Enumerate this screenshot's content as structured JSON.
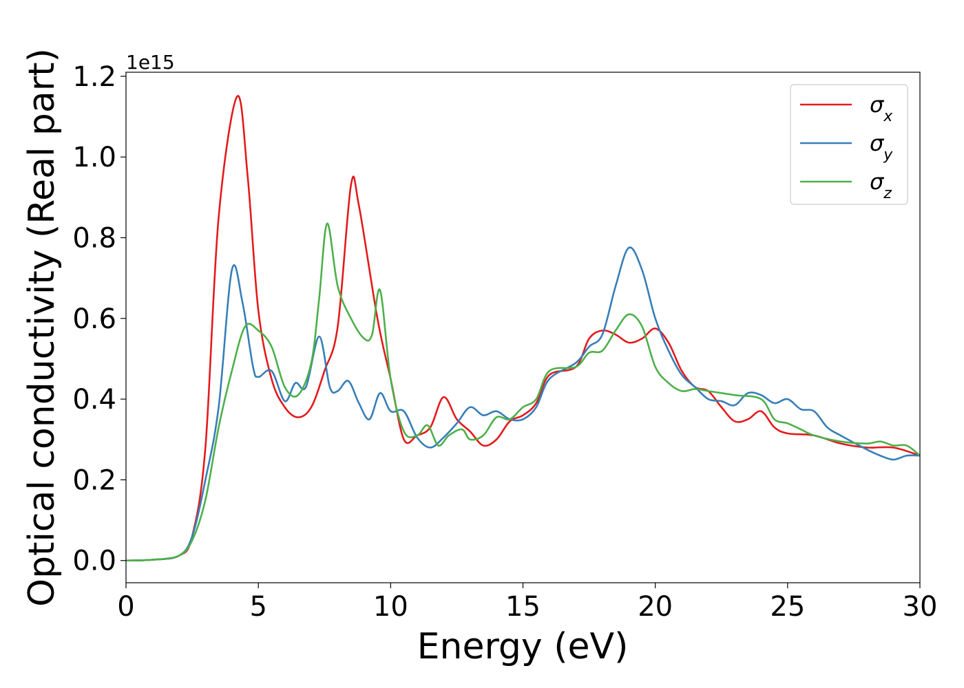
{
  "chart_data": {
    "type": "line",
    "title": "",
    "xlabel": "Energy (eV)",
    "ylabel": "Optical conductivity (Real part)",
    "y_offset_label": "1e15",
    "xlim": [
      0,
      30
    ],
    "ylim": [
      -0.055,
      1.21
    ],
    "x_ticks": [
      0,
      5,
      10,
      15,
      20,
      25,
      30
    ],
    "x_tick_labels": [
      "0",
      "5",
      "10",
      "15",
      "20",
      "25",
      "30"
    ],
    "y_ticks": [
      0.0,
      0.2,
      0.4,
      0.6,
      0.8,
      1.0,
      1.2
    ],
    "y_tick_labels": [
      "0.0",
      "0.2",
      "0.4",
      "0.6",
      "0.8",
      "1.0",
      "1.2"
    ],
    "grid": false,
    "legend_position": "top-right",
    "series": [
      {
        "name": "σx",
        "base": "σ",
        "sub": "x",
        "color": "#e41a1c",
        "points": [
          [
            0,
            0
          ],
          [
            1,
            0.002
          ],
          [
            2,
            0.012
          ],
          [
            2.5,
            0.06
          ],
          [
            3,
            0.28
          ],
          [
            3.5,
            0.85
          ],
          [
            4.2,
            1.15
          ],
          [
            4.6,
            0.95
          ],
          [
            5,
            0.62
          ],
          [
            5.5,
            0.45
          ],
          [
            6,
            0.38
          ],
          [
            6.5,
            0.355
          ],
          [
            7,
            0.38
          ],
          [
            7.5,
            0.47
          ],
          [
            8,
            0.58
          ],
          [
            8.5,
            0.93
          ],
          [
            8.8,
            0.88
          ],
          [
            9.5,
            0.6
          ],
          [
            10,
            0.45
          ],
          [
            10.5,
            0.3
          ],
          [
            11,
            0.31
          ],
          [
            11.5,
            0.33
          ],
          [
            12,
            0.405
          ],
          [
            12.5,
            0.35
          ],
          [
            13,
            0.32
          ],
          [
            13.5,
            0.285
          ],
          [
            14,
            0.3
          ],
          [
            14.5,
            0.345
          ],
          [
            15,
            0.36
          ],
          [
            15.5,
            0.39
          ],
          [
            16,
            0.46
          ],
          [
            17,
            0.48
          ],
          [
            17.5,
            0.55
          ],
          [
            18,
            0.57
          ],
          [
            18.5,
            0.56
          ],
          [
            19,
            0.54
          ],
          [
            19.5,
            0.55
          ],
          [
            20,
            0.575
          ],
          [
            20.5,
            0.54
          ],
          [
            21,
            0.47
          ],
          [
            21.5,
            0.43
          ],
          [
            22,
            0.42
          ],
          [
            22.5,
            0.38
          ],
          [
            23,
            0.345
          ],
          [
            23.5,
            0.35
          ],
          [
            24,
            0.37
          ],
          [
            24.5,
            0.33
          ],
          [
            25,
            0.315
          ],
          [
            26,
            0.31
          ],
          [
            27,
            0.29
          ],
          [
            28,
            0.28
          ],
          [
            29,
            0.28
          ],
          [
            30,
            0.26
          ]
        ]
      },
      {
        "name": "σy",
        "base": "σ",
        "sub": "y",
        "color": "#377eb8",
        "points": [
          [
            0,
            0
          ],
          [
            1,
            0.002
          ],
          [
            2,
            0.012
          ],
          [
            2.5,
            0.06
          ],
          [
            3,
            0.2
          ],
          [
            3.5,
            0.38
          ],
          [
            4,
            0.72
          ],
          [
            4.4,
            0.64
          ],
          [
            4.8,
            0.48
          ],
          [
            5,
            0.455
          ],
          [
            5.5,
            0.47
          ],
          [
            6,
            0.395
          ],
          [
            6.4,
            0.44
          ],
          [
            6.8,
            0.43
          ],
          [
            7.3,
            0.555
          ],
          [
            7.7,
            0.43
          ],
          [
            8,
            0.42
          ],
          [
            8.4,
            0.445
          ],
          [
            8.8,
            0.39
          ],
          [
            9.2,
            0.35
          ],
          [
            9.6,
            0.415
          ],
          [
            10,
            0.37
          ],
          [
            10.5,
            0.37
          ],
          [
            11,
            0.305
          ],
          [
            11.5,
            0.28
          ],
          [
            12,
            0.305
          ],
          [
            12.5,
            0.34
          ],
          [
            13,
            0.38
          ],
          [
            13.5,
            0.36
          ],
          [
            14,
            0.37
          ],
          [
            14.5,
            0.35
          ],
          [
            15,
            0.35
          ],
          [
            15.5,
            0.38
          ],
          [
            16,
            0.45
          ],
          [
            17,
            0.49
          ],
          [
            17.5,
            0.53
          ],
          [
            18,
            0.56
          ],
          [
            18.5,
            0.68
          ],
          [
            19,
            0.775
          ],
          [
            19.5,
            0.72
          ],
          [
            20,
            0.6
          ],
          [
            20.5,
            0.52
          ],
          [
            21,
            0.46
          ],
          [
            21.5,
            0.43
          ],
          [
            22,
            0.4
          ],
          [
            22.5,
            0.395
          ],
          [
            23,
            0.385
          ],
          [
            23.5,
            0.415
          ],
          [
            24,
            0.41
          ],
          [
            24.5,
            0.39
          ],
          [
            25,
            0.4
          ],
          [
            25.5,
            0.375
          ],
          [
            26,
            0.37
          ],
          [
            26.5,
            0.33
          ],
          [
            27,
            0.31
          ],
          [
            28,
            0.275
          ],
          [
            28.5,
            0.26
          ],
          [
            29,
            0.25
          ],
          [
            29.5,
            0.26
          ],
          [
            30,
            0.26
          ]
        ]
      },
      {
        "name": "σz",
        "base": "σ",
        "sub": "z",
        "color": "#4daf4a",
        "points": [
          [
            0,
            0
          ],
          [
            1,
            0.002
          ],
          [
            2,
            0.012
          ],
          [
            2.5,
            0.05
          ],
          [
            3,
            0.15
          ],
          [
            3.5,
            0.33
          ],
          [
            4,
            0.47
          ],
          [
            4.5,
            0.58
          ],
          [
            5,
            0.57
          ],
          [
            5.5,
            0.53
          ],
          [
            6,
            0.43
          ],
          [
            6.5,
            0.41
          ],
          [
            7,
            0.49
          ],
          [
            7.3,
            0.65
          ],
          [
            7.6,
            0.835
          ],
          [
            8,
            0.68
          ],
          [
            8.5,
            0.6
          ],
          [
            9,
            0.55
          ],
          [
            9.3,
            0.56
          ],
          [
            9.6,
            0.67
          ],
          [
            10,
            0.45
          ],
          [
            10.5,
            0.32
          ],
          [
            11,
            0.31
          ],
          [
            11.4,
            0.335
          ],
          [
            11.8,
            0.285
          ],
          [
            12.2,
            0.31
          ],
          [
            12.7,
            0.325
          ],
          [
            13,
            0.3
          ],
          [
            13.5,
            0.31
          ],
          [
            14,
            0.355
          ],
          [
            14.5,
            0.35
          ],
          [
            15,
            0.38
          ],
          [
            15.5,
            0.4
          ],
          [
            16,
            0.47
          ],
          [
            17,
            0.48
          ],
          [
            17.5,
            0.515
          ],
          [
            18,
            0.52
          ],
          [
            18.5,
            0.57
          ],
          [
            19,
            0.61
          ],
          [
            19.5,
            0.58
          ],
          [
            20,
            0.48
          ],
          [
            20.5,
            0.44
          ],
          [
            21,
            0.42
          ],
          [
            21.5,
            0.425
          ],
          [
            22,
            0.42
          ],
          [
            23,
            0.41
          ],
          [
            24,
            0.4
          ],
          [
            24.5,
            0.35
          ],
          [
            25,
            0.34
          ],
          [
            25.5,
            0.325
          ],
          [
            26,
            0.31
          ],
          [
            27,
            0.295
          ],
          [
            28,
            0.29
          ],
          [
            28.5,
            0.295
          ],
          [
            29,
            0.285
          ],
          [
            29.5,
            0.285
          ],
          [
            30,
            0.26
          ]
        ]
      }
    ]
  }
}
